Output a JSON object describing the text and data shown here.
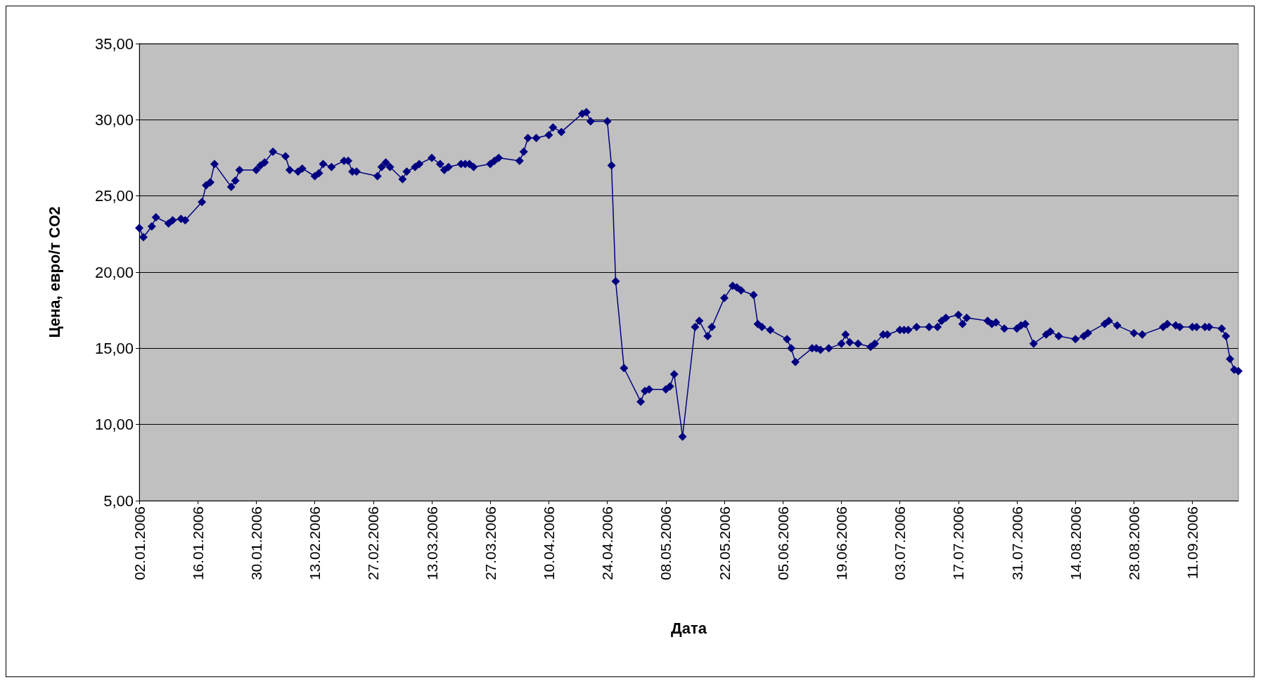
{
  "chart_data": {
    "type": "line",
    "xlabel": "Дата",
    "ylabel": "Цена, евро/т CO2",
    "marker": "diamond",
    "line_style": "solid",
    "grid": "y",
    "xlim": [
      "2006-01-02",
      "2006-09-22"
    ],
    "xticks": [
      {
        "value": "2006-01-02",
        "label": "02.01.2006"
      },
      {
        "value": "2006-01-16",
        "label": "16.01.2006"
      },
      {
        "value": "2006-01-30",
        "label": "30.01.2006"
      },
      {
        "value": "2006-02-13",
        "label": "13.02.2006"
      },
      {
        "value": "2006-02-27",
        "label": "27.02.2006"
      },
      {
        "value": "2006-03-13",
        "label": "13.03.2006"
      },
      {
        "value": "2006-03-27",
        "label": "27.03.2006"
      },
      {
        "value": "2006-04-10",
        "label": "10.04.2006"
      },
      {
        "value": "2006-04-24",
        "label": "24.04.2006"
      },
      {
        "value": "2006-05-08",
        "label": "08.05.2006"
      },
      {
        "value": "2006-05-22",
        "label": "22.05.2006"
      },
      {
        "value": "2006-06-05",
        "label": "05.06.2006"
      },
      {
        "value": "2006-06-19",
        "label": "19.06.2006"
      },
      {
        "value": "2006-07-03",
        "label": "03.07.2006"
      },
      {
        "value": "2006-07-17",
        "label": "17.07.2006"
      },
      {
        "value": "2006-07-31",
        "label": "31.07.2006"
      },
      {
        "value": "2006-08-14",
        "label": "14.08.2006"
      },
      {
        "value": "2006-08-28",
        "label": "28.08.2006"
      },
      {
        "value": "2006-09-11",
        "label": "11.09.2006"
      }
    ],
    "ylim": [
      5,
      35
    ],
    "yticks": [
      {
        "value": 5,
        "label": "5,00"
      },
      {
        "value": 10,
        "label": "10,00"
      },
      {
        "value": 15,
        "label": "15,00"
      },
      {
        "value": 20,
        "label": "20,00"
      },
      {
        "value": 25,
        "label": "25,00"
      },
      {
        "value": 30,
        "label": "30,00"
      },
      {
        "value": 35,
        "label": "35,00"
      }
    ],
    "series": [
      {
        "color": "#000080",
        "x": [
          "2006-01-02",
          "2006-01-03",
          "2006-01-05",
          "2006-01-06",
          "2006-01-09",
          "2006-01-10",
          "2006-01-12",
          "2006-01-13",
          "2006-01-17",
          "2006-01-18",
          "2006-01-19",
          "2006-01-20",
          "2006-01-24",
          "2006-01-25",
          "2006-01-26",
          "2006-01-30",
          "2006-01-31",
          "2006-02-01",
          "2006-02-03",
          "2006-02-06",
          "2006-02-07",
          "2006-02-09",
          "2006-02-10",
          "2006-02-13",
          "2006-02-14",
          "2006-02-15",
          "2006-02-17",
          "2006-02-20",
          "2006-02-21",
          "2006-02-22",
          "2006-02-23",
          "2006-02-28",
          "2006-03-01",
          "2006-03-02",
          "2006-03-03",
          "2006-03-06",
          "2006-03-07",
          "2006-03-09",
          "2006-03-10",
          "2006-03-13",
          "2006-03-15",
          "2006-03-16",
          "2006-03-17",
          "2006-03-20",
          "2006-03-21",
          "2006-03-22",
          "2006-03-23",
          "2006-03-27",
          "2006-03-28",
          "2006-03-29",
          "2006-04-03",
          "2006-04-04",
          "2006-04-05",
          "2006-04-07",
          "2006-04-10",
          "2006-04-11",
          "2006-04-13",
          "2006-04-18",
          "2006-04-19",
          "2006-04-20",
          "2006-04-24",
          "2006-04-25",
          "2006-04-26",
          "2006-04-28",
          "2006-05-02",
          "2006-05-03",
          "2006-05-04",
          "2006-05-08",
          "2006-05-09",
          "2006-05-10",
          "2006-05-12",
          "2006-05-15",
          "2006-05-16",
          "2006-05-18",
          "2006-05-19",
          "2006-05-22",
          "2006-05-24",
          "2006-05-25",
          "2006-05-26",
          "2006-05-29",
          "2006-05-30",
          "2006-05-31",
          "2006-06-02",
          "2006-06-06",
          "2006-06-07",
          "2006-06-08",
          "2006-06-12",
          "2006-06-13",
          "2006-06-14",
          "2006-06-16",
          "2006-06-19",
          "2006-06-20",
          "2006-06-21",
          "2006-06-23",
          "2006-06-26",
          "2006-06-27",
          "2006-06-29",
          "2006-06-30",
          "2006-07-03",
          "2006-07-04",
          "2006-07-05",
          "2006-07-07",
          "2006-07-10",
          "2006-07-12",
          "2006-07-13",
          "2006-07-14",
          "2006-07-17",
          "2006-07-18",
          "2006-07-19",
          "2006-07-24",
          "2006-07-25",
          "2006-07-26",
          "2006-07-28",
          "2006-07-31",
          "2006-08-01",
          "2006-08-02",
          "2006-08-04",
          "2006-08-07",
          "2006-08-08",
          "2006-08-10",
          "2006-08-14",
          "2006-08-16",
          "2006-08-17",
          "2006-08-21",
          "2006-08-22",
          "2006-08-24",
          "2006-08-28",
          "2006-08-30",
          "2006-09-04",
          "2006-09-05",
          "2006-09-07",
          "2006-09-08",
          "2006-09-11",
          "2006-09-12",
          "2006-09-14",
          "2006-09-15",
          "2006-09-18",
          "2006-09-19",
          "2006-09-20",
          "2006-09-21",
          "2006-09-22"
        ],
        "values": [
          22.9,
          22.3,
          23.0,
          23.6,
          23.2,
          23.4,
          23.5,
          23.4,
          24.6,
          25.7,
          25.9,
          27.1,
          25.6,
          26.0,
          26.7,
          26.7,
          27.0,
          27.2,
          27.9,
          27.6,
          26.7,
          26.6,
          26.8,
          26.3,
          26.5,
          27.1,
          26.9,
          27.3,
          27.3,
          26.6,
          26.6,
          26.3,
          26.9,
          27.2,
          26.9,
          26.1,
          26.6,
          26.9,
          27.1,
          27.5,
          27.1,
          26.7,
          26.9,
          27.1,
          27.1,
          27.1,
          26.9,
          27.1,
          27.3,
          27.5,
          27.3,
          27.9,
          28.8,
          28.8,
          29.0,
          29.5,
          29.2,
          30.4,
          30.5,
          29.9,
          29.9,
          27.0,
          19.4,
          13.7,
          11.5,
          12.2,
          12.3,
          12.3,
          12.5,
          13.3,
          9.2,
          16.4,
          16.8,
          15.8,
          16.4,
          18.3,
          19.1,
          19.0,
          18.8,
          18.5,
          16.6,
          16.4,
          16.2,
          15.6,
          15.0,
          14.1,
          15.0,
          15.0,
          14.9,
          15.0,
          15.3,
          15.9,
          15.4,
          15.3,
          15.1,
          15.3,
          15.9,
          15.9,
          16.2,
          16.2,
          16.2,
          16.4,
          16.4,
          16.4,
          16.8,
          17.0,
          17.2,
          16.6,
          17.0,
          16.8,
          16.6,
          16.7,
          16.3,
          16.3,
          16.5,
          16.6,
          15.3,
          15.9,
          16.1,
          15.8,
          15.6,
          15.8,
          16.0,
          16.6,
          16.8,
          16.5,
          16.0,
          15.9,
          16.4,
          16.6,
          16.5,
          16.4,
          16.4,
          16.4,
          16.4,
          16.4,
          16.3,
          15.8,
          14.3,
          13.6,
          13.5
        ]
      }
    ]
  }
}
